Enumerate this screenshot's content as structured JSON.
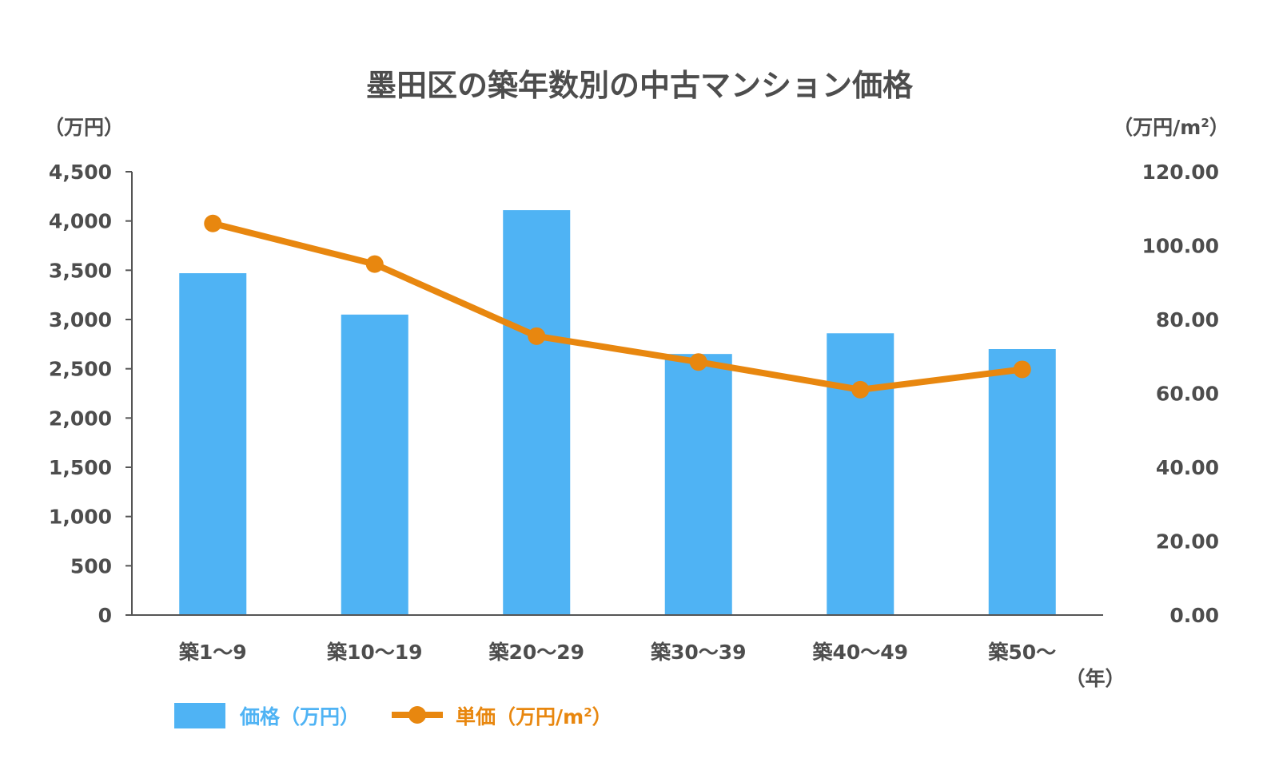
{
  "chart_data": {
    "type": "bar+line",
    "title": "墨田区の築年数別の中古マンション価格",
    "categories": [
      "築1〜9",
      "築10〜19",
      "築20〜29",
      "築30〜39",
      "築40〜49",
      "築50〜"
    ],
    "series": [
      {
        "name": "価格（万円）",
        "type": "bar",
        "axis": "left",
        "values": [
          3470,
          3050,
          4110,
          2650,
          2860,
          2700
        ]
      },
      {
        "name": "単価（万円/m²）",
        "type": "line",
        "axis": "right",
        "values": [
          106.0,
          95.0,
          75.5,
          68.5,
          61.0,
          66.5
        ]
      }
    ],
    "y_left": {
      "label": "（万円）",
      "ylim": [
        0,
        4500
      ],
      "ticks": [
        "0",
        "500",
        "1,000",
        "1,500",
        "2,000",
        "2,500",
        "3,000",
        "3,500",
        "4,000",
        "4,500"
      ]
    },
    "y_right": {
      "label": "（万円/m²）",
      "ylim": [
        0,
        120
      ],
      "ticks": [
        "0.00",
        "20.00",
        "40.00",
        "60.00",
        "80.00",
        "100.00",
        "120.00"
      ]
    },
    "xlabel": "（年）",
    "grid": false,
    "legend_position": "bottom-left"
  },
  "colors": {
    "bar": "#4fb3f4",
    "line": "#e8870f",
    "text": "#4d4d4d",
    "axis": "#555555",
    "legend_bar_text": "#4fb3f4",
    "legend_line_text": "#e8870f"
  }
}
